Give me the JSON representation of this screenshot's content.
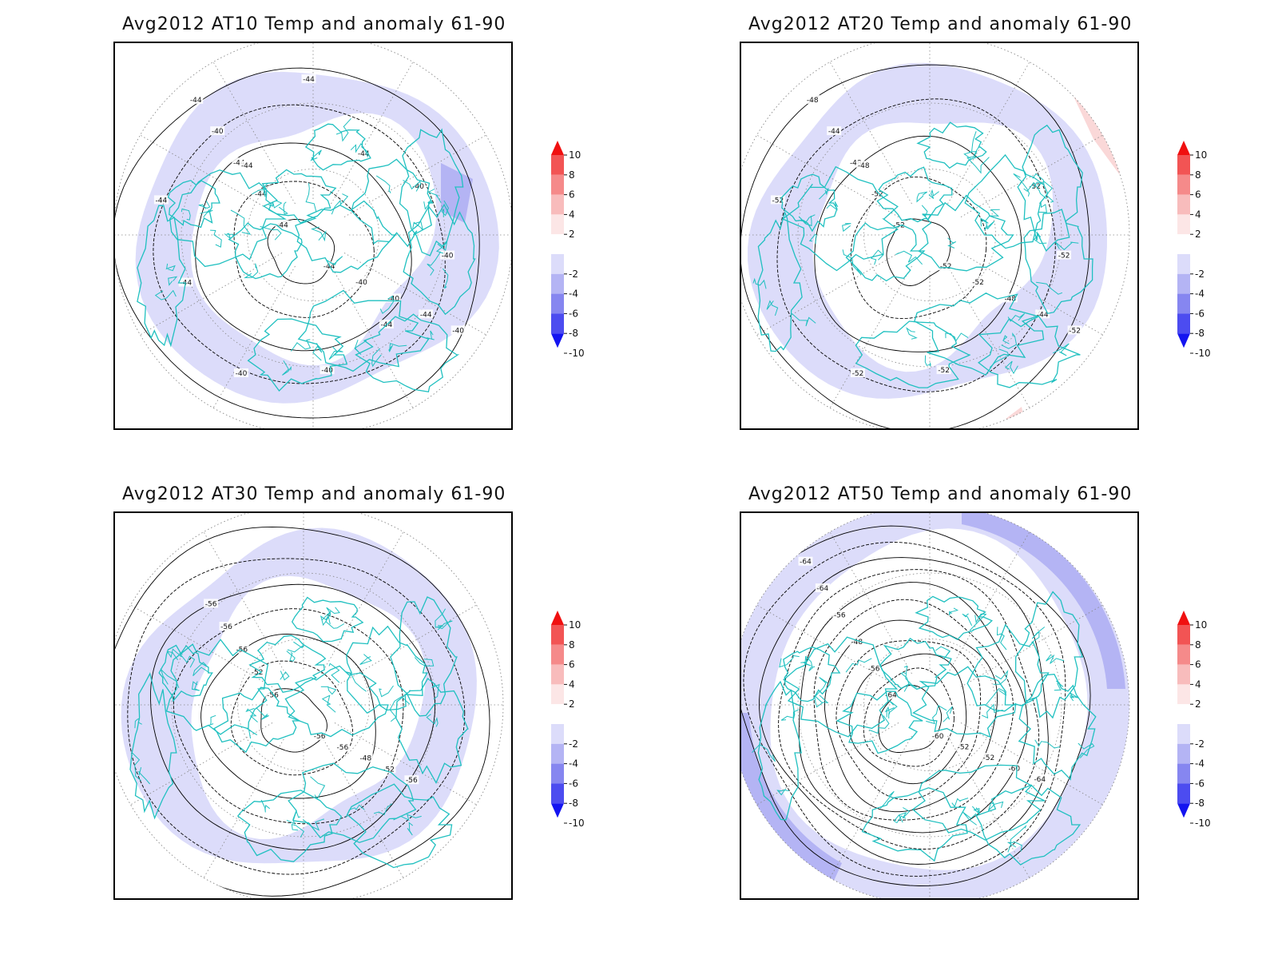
{
  "panels": [
    {
      "title": "Avg2012 AT10 Temp and anomaly 61-90",
      "contour_labels": [
        "-44",
        "-44",
        "-44",
        "-40",
        "-44",
        "-40",
        "-40",
        "-44",
        "-44",
        "-40",
        "-40",
        "-40",
        "-44",
        "-40",
        "-40",
        "-44",
        "-44",
        "-44",
        "-44",
        "-44"
      ],
      "anomaly_shading": "blue"
    },
    {
      "title": "Avg2012 AT20 Temp and anomaly 61-90",
      "contour_labels": [
        "-52",
        "-52",
        "-52",
        "-52",
        "-48",
        "-48",
        "-44",
        "-44",
        "-48",
        "-52",
        "-52",
        "-52",
        "-48",
        "-52",
        "-52",
        "-52"
      ],
      "anomaly_shading": "blue-with-pink"
    },
    {
      "title": "Avg2012 AT30 Temp and anomaly 61-90",
      "contour_labels": [
        "-56",
        "-56",
        "-52",
        "-56",
        "-56",
        "-48",
        "-56",
        "-52",
        "-56",
        "-56"
      ],
      "anomaly_shading": "blue"
    },
    {
      "title": "Avg2012 AT50 Temp and anomaly 61-90",
      "contour_labels": [
        "-64",
        "-60",
        "-56",
        "-52",
        "-48",
        "-52",
        "-56",
        "-60",
        "-64",
        "-64",
        "-64"
      ],
      "anomaly_shading": "blue-strong"
    }
  ],
  "colorbar": {
    "labels": [
      "10",
      "8",
      "6",
      "4",
      "2",
      "-2",
      "-4",
      "-6",
      "-8",
      "-10"
    ],
    "colors": [
      "#f01010",
      "#f25454",
      "#f58a8a",
      "#f8bcbc",
      "#fce6e6",
      "#ffffff",
      "#dcdcfa",
      "#b4b4f4",
      "#8686f0",
      "#4c4cf0",
      "#1414f0"
    ]
  },
  "colors": {
    "coast": "#20c0c0",
    "contour": "#000000",
    "grid": "#888888",
    "anomaly_light_blue": "#dcdcfa",
    "anomaly_mid_blue": "#b4b4f4",
    "anomaly_pink": "#fad8d8"
  }
}
